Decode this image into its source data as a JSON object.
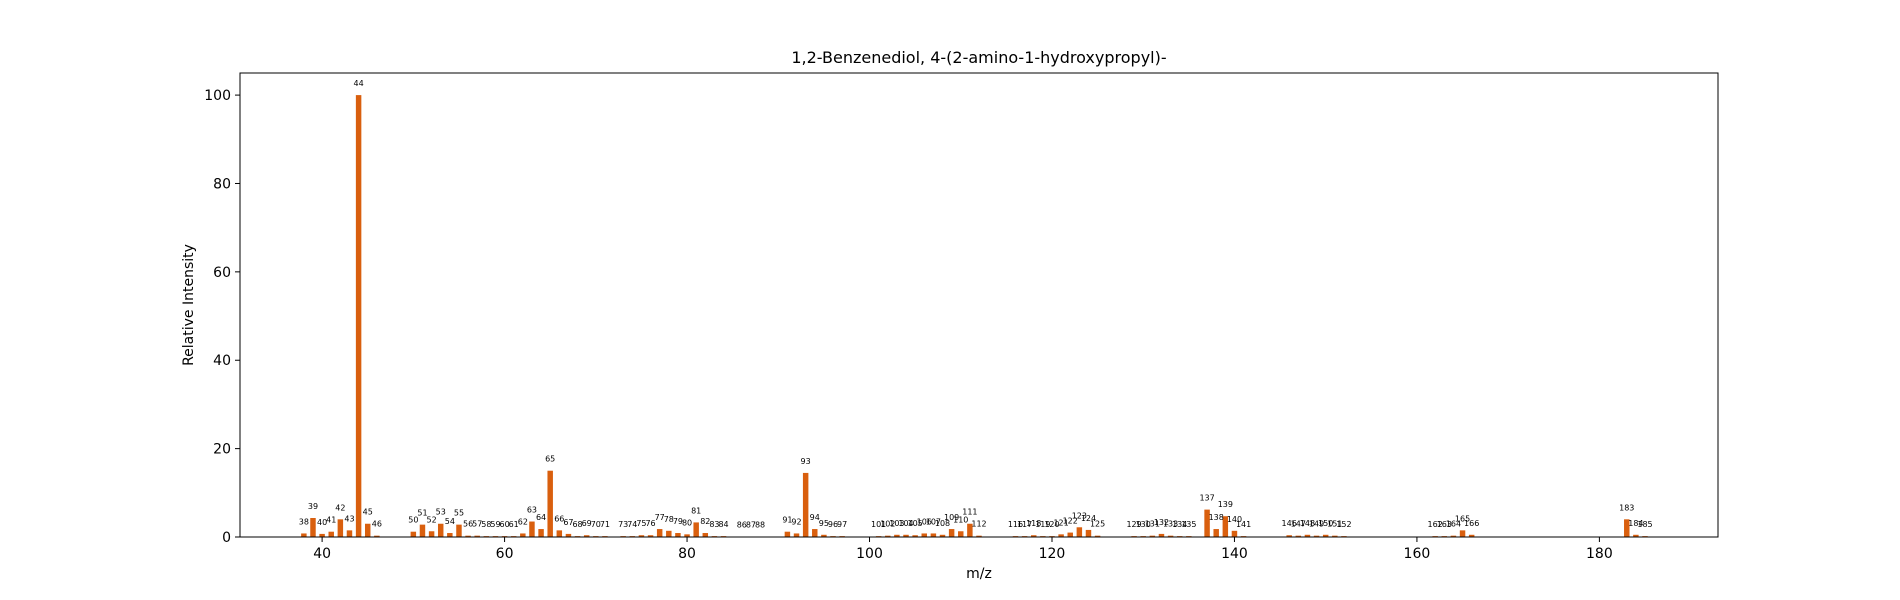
{
  "chart_data": {
    "type": "bar",
    "title": "1,2-Benzenediol, 4-(2-amino-1-hydroxypropyl)-",
    "xlabel": "m/z",
    "ylabel": "Relative Intensity",
    "xlim": [
      31,
      193
    ],
    "ylim": [
      0,
      105
    ],
    "xticks": [
      40,
      60,
      80,
      100,
      120,
      140,
      160,
      180
    ],
    "yticks": [
      0,
      20,
      40,
      60,
      80,
      100
    ],
    "bar_color": "#d95f0e",
    "grid": false,
    "peaks": [
      {
        "mz": 38,
        "intensity": 0.8,
        "label": "38"
      },
      {
        "mz": 39,
        "intensity": 4.3,
        "label": "39"
      },
      {
        "mz": 40,
        "intensity": 0.7,
        "label": "40"
      },
      {
        "mz": 41,
        "intensity": 1.2,
        "label": "41"
      },
      {
        "mz": 42,
        "intensity": 4.0,
        "label": "42"
      },
      {
        "mz": 43,
        "intensity": 1.5,
        "label": "43"
      },
      {
        "mz": 44,
        "intensity": 100.0,
        "label": "44"
      },
      {
        "mz": 45,
        "intensity": 3.0,
        "label": "45"
      },
      {
        "mz": 46,
        "intensity": 0.3,
        "label": "46"
      },
      {
        "mz": 50,
        "intensity": 1.2,
        "label": "50"
      },
      {
        "mz": 51,
        "intensity": 2.8,
        "label": "51"
      },
      {
        "mz": 52,
        "intensity": 1.3,
        "label": "52"
      },
      {
        "mz": 53,
        "intensity": 3.0,
        "label": "53"
      },
      {
        "mz": 54,
        "intensity": 0.9,
        "label": "54"
      },
      {
        "mz": 55,
        "intensity": 2.8,
        "label": "55"
      },
      {
        "mz": 56,
        "intensity": 0.3,
        "label": "56"
      },
      {
        "mz": 57,
        "intensity": 0.3,
        "label": "57"
      },
      {
        "mz": 58,
        "intensity": 0.2,
        "label": "58"
      },
      {
        "mz": 59,
        "intensity": 0.2,
        "label": "59"
      },
      {
        "mz": 60,
        "intensity": 0.2,
        "label": "60"
      },
      {
        "mz": 61,
        "intensity": 0.2,
        "label": "61"
      },
      {
        "mz": 62,
        "intensity": 0.8,
        "label": "62"
      },
      {
        "mz": 63,
        "intensity": 3.5,
        "label": "63"
      },
      {
        "mz": 64,
        "intensity": 1.8,
        "label": "64"
      },
      {
        "mz": 65,
        "intensity": 15.0,
        "label": "65"
      },
      {
        "mz": 66,
        "intensity": 1.5,
        "label": "66"
      },
      {
        "mz": 67,
        "intensity": 0.7,
        "label": "67"
      },
      {
        "mz": 68,
        "intensity": 0.2,
        "label": "68"
      },
      {
        "mz": 69,
        "intensity": 0.4,
        "label": "69"
      },
      {
        "mz": 70,
        "intensity": 0.2,
        "label": "70"
      },
      {
        "mz": 71,
        "intensity": 0.2,
        "label": "71"
      },
      {
        "mz": 73,
        "intensity": 0.2,
        "label": "73"
      },
      {
        "mz": 74,
        "intensity": 0.2,
        "label": "74"
      },
      {
        "mz": 75,
        "intensity": 0.4,
        "label": "75"
      },
      {
        "mz": 76,
        "intensity": 0.4,
        "label": "76"
      },
      {
        "mz": 77,
        "intensity": 1.8,
        "label": "77"
      },
      {
        "mz": 78,
        "intensity": 1.4,
        "label": "78"
      },
      {
        "mz": 79,
        "intensity": 0.9,
        "label": "79"
      },
      {
        "mz": 80,
        "intensity": 0.6,
        "label": "80"
      },
      {
        "mz": 81,
        "intensity": 3.3,
        "label": "81"
      },
      {
        "mz": 82,
        "intensity": 0.9,
        "label": "82"
      },
      {
        "mz": 83,
        "intensity": 0.2,
        "label": "83"
      },
      {
        "mz": 84,
        "intensity": 0.2,
        "label": "84"
      },
      {
        "mz": 86,
        "intensity": 0.1,
        "label": "86"
      },
      {
        "mz": 87,
        "intensity": 0.1,
        "label": "87"
      },
      {
        "mz": 88,
        "intensity": 0.1,
        "label": "88"
      },
      {
        "mz": 91,
        "intensity": 1.2,
        "label": "91"
      },
      {
        "mz": 92,
        "intensity": 0.8,
        "label": "92"
      },
      {
        "mz": 93,
        "intensity": 14.5,
        "label": "93"
      },
      {
        "mz": 94,
        "intensity": 1.8,
        "label": "94"
      },
      {
        "mz": 95,
        "intensity": 0.5,
        "label": "95"
      },
      {
        "mz": 96,
        "intensity": 0.2,
        "label": "96"
      },
      {
        "mz": 97,
        "intensity": 0.2,
        "label": "97"
      },
      {
        "mz": 101,
        "intensity": 0.2,
        "label": "101"
      },
      {
        "mz": 102,
        "intensity": 0.3,
        "label": "102"
      },
      {
        "mz": 103,
        "intensity": 0.5,
        "label": "103"
      },
      {
        "mz": 104,
        "intensity": 0.5,
        "label": "104"
      },
      {
        "mz": 105,
        "intensity": 0.4,
        "label": "105"
      },
      {
        "mz": 106,
        "intensity": 0.8,
        "label": "106"
      },
      {
        "mz": 107,
        "intensity": 0.8,
        "label": "107"
      },
      {
        "mz": 108,
        "intensity": 0.5,
        "label": "108"
      },
      {
        "mz": 109,
        "intensity": 1.8,
        "label": "109"
      },
      {
        "mz": 110,
        "intensity": 1.3,
        "label": "110"
      },
      {
        "mz": 111,
        "intensity": 3.0,
        "label": "111"
      },
      {
        "mz": 112,
        "intensity": 0.3,
        "label": "112"
      },
      {
        "mz": 116,
        "intensity": 0.2,
        "label": "116"
      },
      {
        "mz": 117,
        "intensity": 0.2,
        "label": "117"
      },
      {
        "mz": 118,
        "intensity": 0.4,
        "label": "118"
      },
      {
        "mz": 119,
        "intensity": 0.2,
        "label": "119"
      },
      {
        "mz": 120,
        "intensity": 0.2,
        "label": "120"
      },
      {
        "mz": 121,
        "intensity": 0.6,
        "label": "121"
      },
      {
        "mz": 122,
        "intensity": 1.0,
        "label": "122"
      },
      {
        "mz": 123,
        "intensity": 2.2,
        "label": "123"
      },
      {
        "mz": 124,
        "intensity": 1.6,
        "label": "124"
      },
      {
        "mz": 125,
        "intensity": 0.3,
        "label": "125"
      },
      {
        "mz": 129,
        "intensity": 0.2,
        "label": "129"
      },
      {
        "mz": 130,
        "intensity": 0.2,
        "label": "130"
      },
      {
        "mz": 131,
        "intensity": 0.3,
        "label": "131"
      },
      {
        "mz": 132,
        "intensity": 0.7,
        "label": "132"
      },
      {
        "mz": 133,
        "intensity": 0.3,
        "label": "133"
      },
      {
        "mz": 134,
        "intensity": 0.2,
        "label": "134"
      },
      {
        "mz": 135,
        "intensity": 0.2,
        "label": "135"
      },
      {
        "mz": 137,
        "intensity": 6.2,
        "label": "137"
      },
      {
        "mz": 138,
        "intensity": 1.8,
        "label": "138"
      },
      {
        "mz": 139,
        "intensity": 4.7,
        "label": "139"
      },
      {
        "mz": 140,
        "intensity": 1.4,
        "label": "140"
      },
      {
        "mz": 141,
        "intensity": 0.2,
        "label": "141"
      },
      {
        "mz": 146,
        "intensity": 0.4,
        "label": "146"
      },
      {
        "mz": 147,
        "intensity": 0.3,
        "label": "147"
      },
      {
        "mz": 148,
        "intensity": 0.5,
        "label": "148"
      },
      {
        "mz": 149,
        "intensity": 0.3,
        "label": "149"
      },
      {
        "mz": 150,
        "intensity": 0.5,
        "label": "150"
      },
      {
        "mz": 151,
        "intensity": 0.3,
        "label": "151"
      },
      {
        "mz": 152,
        "intensity": 0.2,
        "label": "152"
      },
      {
        "mz": 162,
        "intensity": 0.2,
        "label": "162"
      },
      {
        "mz": 163,
        "intensity": 0.2,
        "label": "163"
      },
      {
        "mz": 164,
        "intensity": 0.3,
        "label": "164"
      },
      {
        "mz": 165,
        "intensity": 1.5,
        "label": "165"
      },
      {
        "mz": 166,
        "intensity": 0.5,
        "label": "166"
      },
      {
        "mz": 183,
        "intensity": 4.0,
        "label": "183"
      },
      {
        "mz": 184,
        "intensity": 0.5,
        "label": "184"
      },
      {
        "mz": 185,
        "intensity": 0.2,
        "label": "185"
      }
    ]
  }
}
